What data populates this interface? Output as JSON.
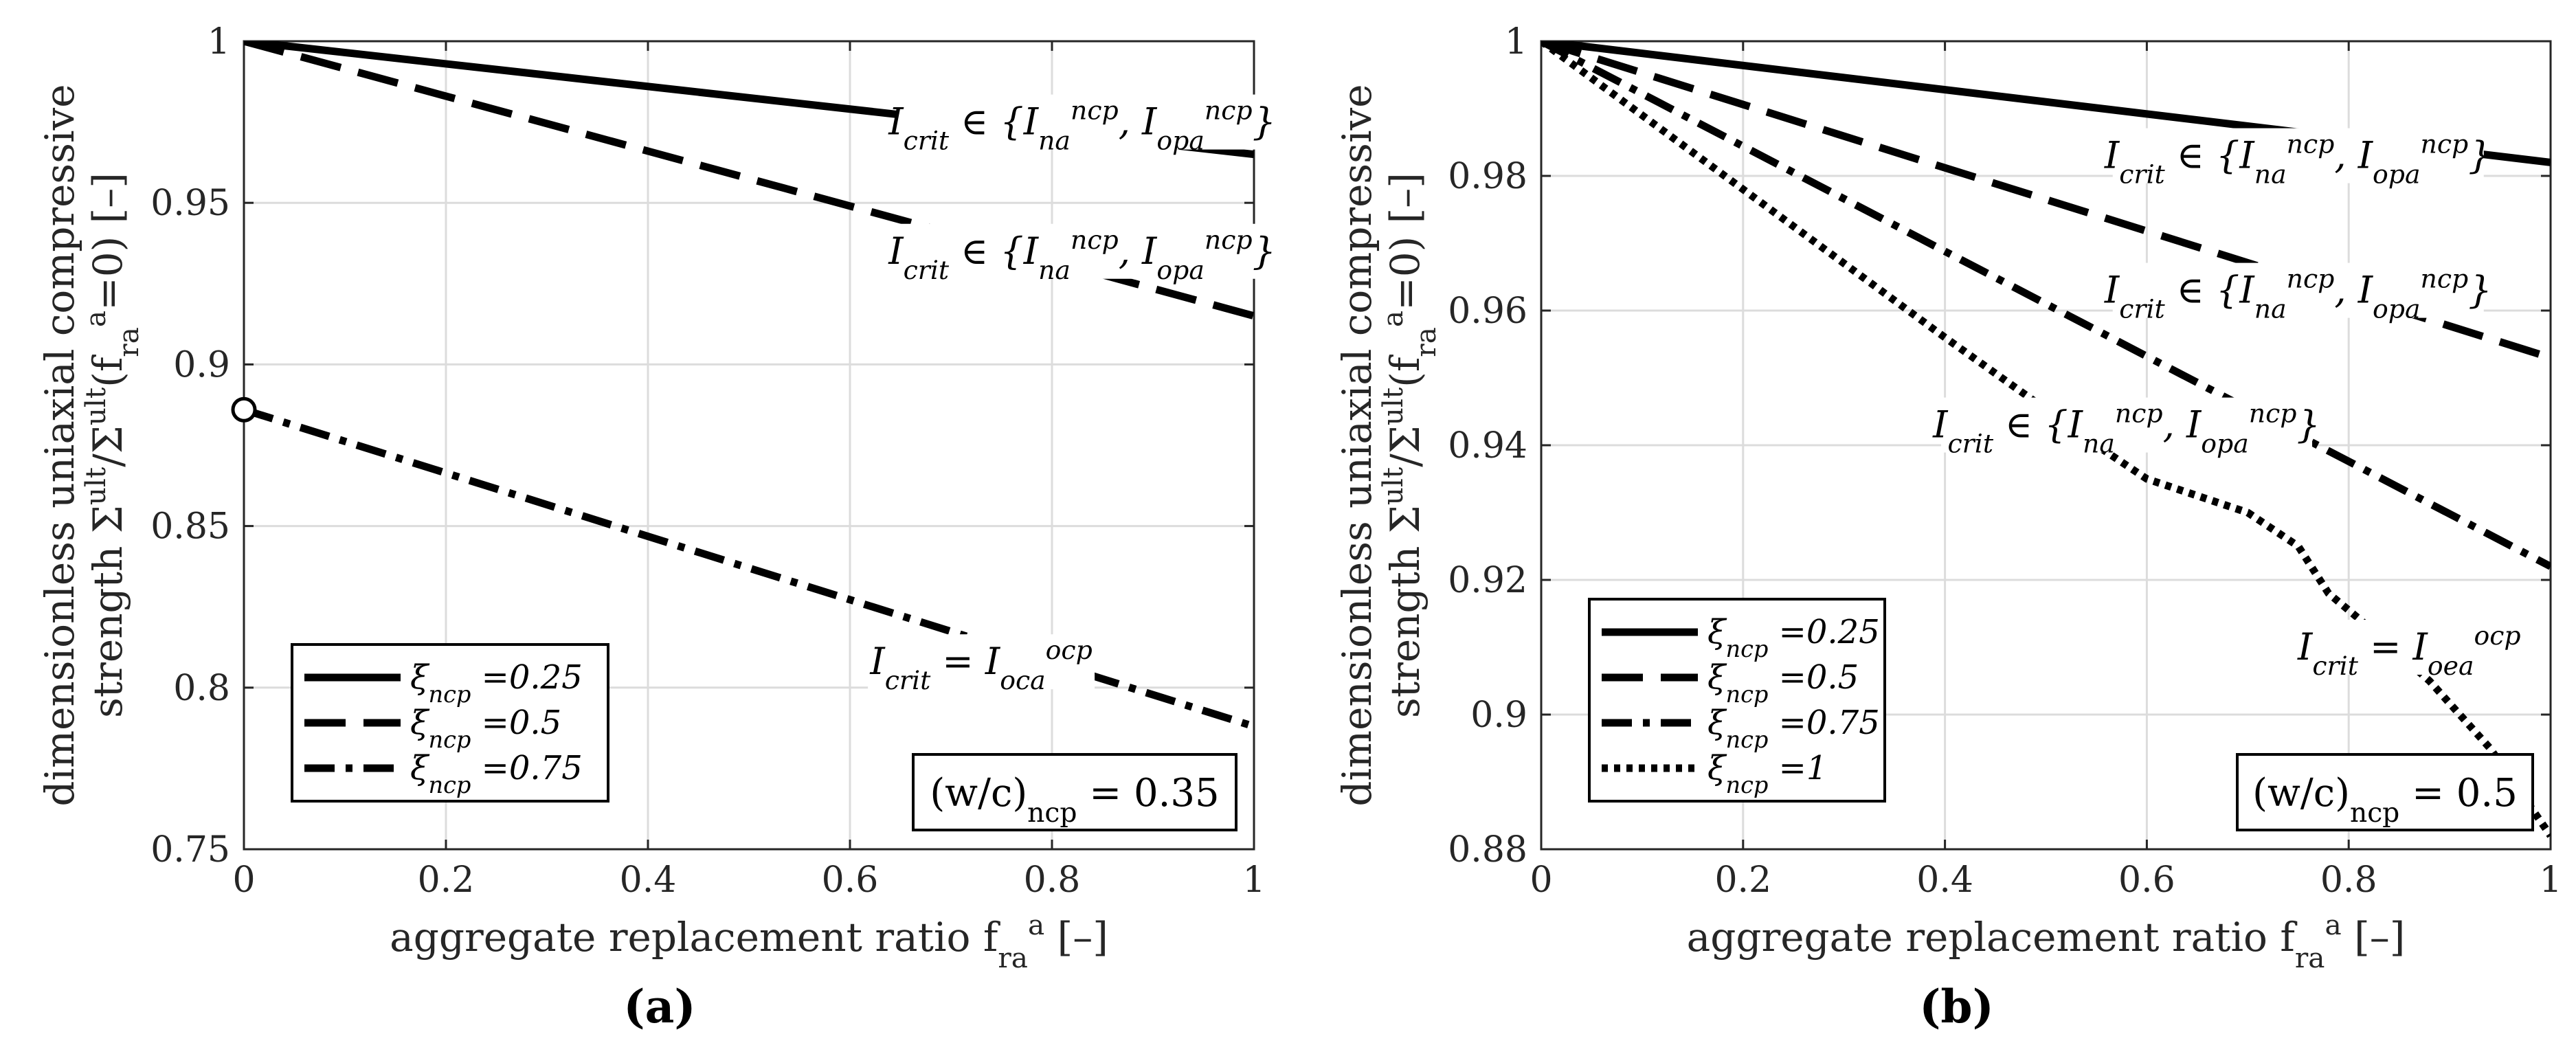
{
  "chart_data": [
    {
      "type": "line",
      "panel_label": "(a)",
      "xlabel": "aggregate replacement ratio f_ra^a [–]",
      "ylabel_line1": "dimensionless uniaxial compressive",
      "ylabel_line2": "strength Σ^ult/Σ^ult(f_ra^a=0) [–]",
      "xlim": [
        0,
        1
      ],
      "ylim": [
        0.75,
        1
      ],
      "xticks": [
        "0",
        "0.2",
        "0.4",
        "0.6",
        "0.8",
        "1"
      ],
      "yticks": [
        "0.75",
        "0.8",
        "0.85",
        "0.9",
        "0.95",
        "1"
      ],
      "ytick_values": [
        0.75,
        0.8,
        0.85,
        0.9,
        0.95,
        1
      ],
      "grid": true,
      "legend_position": "bottom-left",
      "box_label": "(w/c)ncp = 0.35",
      "series": [
        {
          "name": "ξncp =0.25",
          "dash": "solid",
          "x": [
            0,
            1
          ],
          "y": [
            1.0,
            0.965
          ]
        },
        {
          "name": "ξncp =0.5",
          "dash": "dash",
          "x": [
            0,
            1
          ],
          "y": [
            1.0,
            0.915
          ]
        },
        {
          "name": "ξncp =0.75",
          "dash": "dashdot",
          "x": [
            0,
            1
          ],
          "y": [
            0.886,
            0.788
          ],
          "start_marker": "circle"
        }
      ],
      "annotations": [
        {
          "text": "Icrit ∈ {Incp_na, Incp_opa}",
          "x": 0.83,
          "y": 0.975
        },
        {
          "text": "Icrit ∈ {Incp_na, Incp_opa}",
          "x": 0.83,
          "y": 0.935
        },
        {
          "text": "Icrit = Iocp_oca",
          "x": 0.73,
          "y": 0.808
        }
      ]
    },
    {
      "type": "line",
      "panel_label": "(b)",
      "xlabel": "aggregate replacement ratio f_ra^a [–]",
      "ylabel_line1": "dimensionless uniaxial compressive",
      "ylabel_line2": "strength Σ^ult/Σ^ult(f_ra^a=0) [–]",
      "xlim": [
        0,
        1
      ],
      "ylim": [
        0.88,
        1
      ],
      "xticks": [
        "0",
        "0.2",
        "0.4",
        "0.6",
        "0.8",
        "1"
      ],
      "yticks": [
        "0.88",
        "0.9",
        "0.92",
        "0.94",
        "0.96",
        "0.98",
        "1"
      ],
      "ytick_values": [
        0.88,
        0.9,
        0.92,
        0.94,
        0.96,
        0.98,
        1
      ],
      "grid": true,
      "legend_position": "bottom-left",
      "box_label": "(w/c)ncp = 0.5",
      "series": [
        {
          "name": "ξncp =0.25",
          "dash": "solid",
          "x": [
            0,
            1
          ],
          "y": [
            1.0,
            0.982
          ]
        },
        {
          "name": "ξncp =0.5",
          "dash": "dash",
          "x": [
            0,
            1
          ],
          "y": [
            1.0,
            0.953
          ]
        },
        {
          "name": "ξncp =0.75",
          "dash": "dashdot",
          "x": [
            0,
            1
          ],
          "y": [
            1.0,
            0.922
          ]
        },
        {
          "name": "ξncp =1",
          "dash": "dot",
          "x": [
            0,
            0.2,
            0.4,
            0.55,
            0.6,
            0.7,
            0.75,
            0.78,
            0.82,
            0.88,
            0.94,
            1.0
          ],
          "y": [
            1.0,
            0.978,
            0.956,
            0.94,
            0.935,
            0.93,
            0.925,
            0.918,
            0.913,
            0.905,
            0.895,
            0.882
          ]
        }
      ],
      "annotations": [
        {
          "text": "Icrit ∈ {Incp_na, Incp_opa}",
          "x": 0.75,
          "y": 0.983
        },
        {
          "text": "Icrit ∈ {Incp_na, Incp_opa}",
          "x": 0.75,
          "y": 0.963
        },
        {
          "text": "Icrit ∈ {Incp_na, Incp_opa}",
          "x": 0.58,
          "y": 0.943
        },
        {
          "text": "Icrit = Iocp_oea",
          "x": 0.86,
          "y": 0.91
        }
      ]
    }
  ]
}
